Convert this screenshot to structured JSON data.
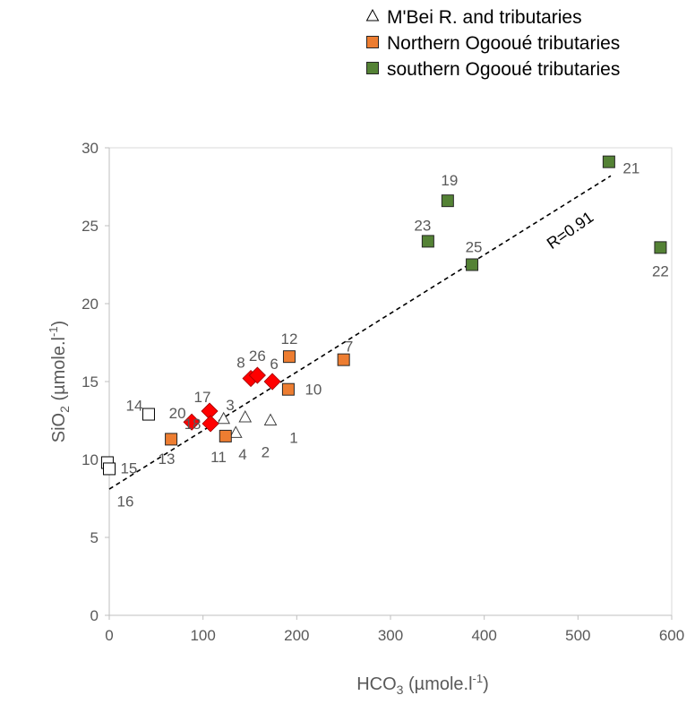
{
  "chart_data": {
    "type": "scatter",
    "xlabel": "HCO3 (µmole.l-1)",
    "xlabel_parts": {
      "main": "HCO",
      "sub": "3",
      "rest": " (µmole.l",
      "sup": "-1",
      "end": ")"
    },
    "ylabel": "SiO2 (µmole.l-1)",
    "ylabel_parts": {
      "main": "SiO",
      "sub": "2",
      "rest": " (µmole.l",
      "sup": "-1",
      "end": ")"
    },
    "xlim": [
      0,
      600
    ],
    "ylim": [
      0,
      30
    ],
    "xticks": [
      "0",
      "100",
      "200",
      "300",
      "400",
      "500",
      "600"
    ],
    "yticks": [
      "0",
      "5",
      "10",
      "15",
      "20",
      "25",
      "30"
    ],
    "grid": false,
    "legend_position": "top-right",
    "legend": [
      {
        "label": "M'Bei R. and tributaries",
        "marker": "triangle-open",
        "color": "#000000"
      },
      {
        "label": "Northern Ogooué tributaries",
        "marker": "square",
        "color": "#ed7d31"
      },
      {
        "label": "southern Ogooué tributaries",
        "marker": "square",
        "color": "#548235"
      }
    ],
    "series": [
      {
        "name": "M'Bei R. and tributaries",
        "marker": "triangle-open",
        "color": "#404040",
        "points": [
          {
            "id": "1",
            "x": 172,
            "y": 12.5
          },
          {
            "id": "2",
            "x": 135,
            "y": 11.7
          },
          {
            "id": "3",
            "x": 122,
            "y": 12.6
          },
          {
            "id": "4",
            "x": 145,
            "y": 12.7
          }
        ]
      },
      {
        "name": "Northern Ogooué tributaries",
        "marker": "square",
        "color": "#ed7d31",
        "points": [
          {
            "id": "7",
            "x": 250,
            "y": 16.4
          },
          {
            "id": "10",
            "x": 191,
            "y": 14.5
          },
          {
            "id": "11",
            "x": 124,
            "y": 11.5
          },
          {
            "id": "12",
            "x": 192,
            "y": 16.6
          },
          {
            "id": "13",
            "x": 66,
            "y": 11.3
          }
        ]
      },
      {
        "name": "southern Ogooué tributaries",
        "marker": "square",
        "color": "#548235",
        "points": [
          {
            "id": "19",
            "x": 361,
            "y": 26.6
          },
          {
            "id": "21",
            "x": 533,
            "y": 29.1
          },
          {
            "id": "22",
            "x": 588,
            "y": 23.6
          },
          {
            "id": "23",
            "x": 340,
            "y": 24.0
          },
          {
            "id": "25",
            "x": 387,
            "y": 22.5
          }
        ]
      },
      {
        "marker": "square-open",
        "color": "#000000",
        "points": [
          {
            "id": "14",
            "x": 42,
            "y": 12.9
          },
          {
            "id": "15",
            "x": -2,
            "y": 9.8
          },
          {
            "id": "16",
            "x": 0,
            "y": 9.4
          }
        ]
      },
      {
        "marker": "diamond",
        "color": "#ff0000",
        "points": [
          {
            "id": "6",
            "x": 174,
            "y": 15.0
          },
          {
            "id": "8",
            "x": 151,
            "y": 15.2
          },
          {
            "id": "26",
            "x": 158,
            "y": 15.4
          },
          {
            "id": "17",
            "x": 107,
            "y": 13.1
          },
          {
            "id": "18",
            "x": 108,
            "y": 12.3
          },
          {
            "id": "20",
            "x": 88,
            "y": 12.4
          }
        ]
      }
    ],
    "trendline": {
      "x": [
        0,
        535
      ],
      "y": [
        8.1,
        28.2
      ],
      "style": "dashed",
      "label": "R=0.91"
    }
  }
}
